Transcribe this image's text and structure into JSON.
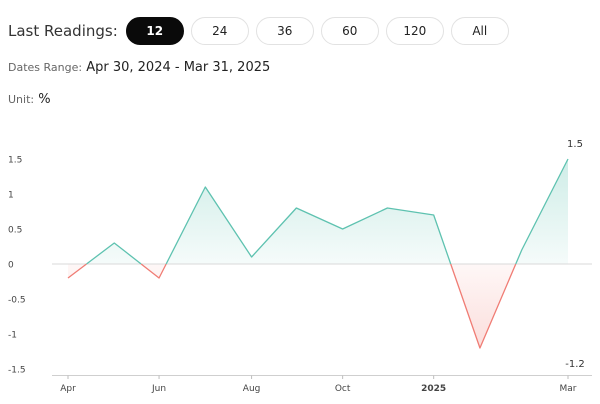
{
  "header": {
    "label": "Last Readings:",
    "pills": [
      {
        "label": "12",
        "active": true
      },
      {
        "label": "24",
        "active": false
      },
      {
        "label": "36",
        "active": false
      },
      {
        "label": "60",
        "active": false
      },
      {
        "label": "120",
        "active": false
      },
      {
        "label": "All",
        "active": false
      }
    ]
  },
  "dates": {
    "label": "Dates Range:",
    "value": "Apr 30, 2024 - Mar 31, 2025"
  },
  "unit": {
    "label": "Unit:",
    "value": "%"
  },
  "colors": {
    "positive": "#5ec2b0",
    "negative": "#f07c74",
    "active_pill": "#0a0a0a"
  },
  "chart_data": {
    "type": "area",
    "x": [
      "2024-04-30",
      "2024-05-31",
      "2024-06-30",
      "2024-07-31",
      "2024-08-31",
      "2024-09-30",
      "2024-10-31",
      "2024-11-30",
      "2024-12-31",
      "2025-01-31",
      "2025-02-28",
      "2025-03-31"
    ],
    "values": [
      -0.2,
      0.3,
      -0.2,
      1.1,
      0.1,
      0.8,
      0.5,
      0.8,
      0.7,
      -1.2,
      0.2,
      1.5
    ],
    "y_ticks": [
      "1.5",
      "1",
      "0.5",
      "0",
      "-0.5",
      "-1",
      "-1.5"
    ],
    "ylim": [
      -1.5,
      1.5
    ],
    "x_ticks": [
      {
        "label": "Apr",
        "x": "2024-04-30"
      },
      {
        "label": "Jun",
        "x": "2024-06-30"
      },
      {
        "label": "Aug",
        "x": "2024-08-31"
      },
      {
        "label": "Oct",
        "x": "2024-10-31"
      },
      {
        "label": "2025",
        "x": "2024-12-31",
        "bold": true
      },
      {
        "label": "Mar",
        "x": "2025-03-31"
      }
    ],
    "annotations": [
      {
        "label": "1.5",
        "x": "2025-03-31",
        "position": "above-max"
      },
      {
        "label": "-1.2",
        "x": "2025-03-31",
        "position": "below-min"
      }
    ],
    "zero_line": true,
    "grid": false
  }
}
